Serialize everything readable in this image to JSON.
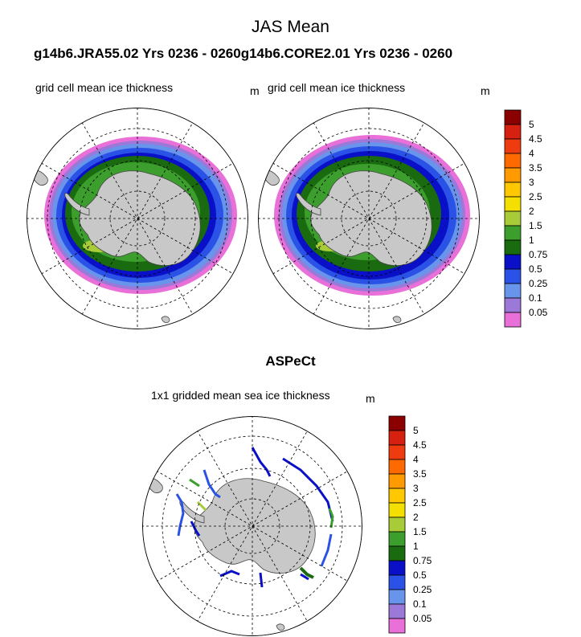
{
  "header": {
    "title": "JAS Mean",
    "subtitle": "g14b6.JRA55.02  Yrs 0236 - 0260g14b6.CORE2.01  Yrs 0236 - 0260"
  },
  "panels": [
    {
      "title": "grid cell mean ice thickness",
      "unit": "m"
    },
    {
      "title": "grid cell mean ice thickness",
      "unit": "m"
    }
  ],
  "observations": {
    "section_title": "ASPeCt",
    "title": "1x1 gridded mean sea ice thickness",
    "unit": "m"
  },
  "colorbar": {
    "levels": [
      "5",
      "4.5",
      "4",
      "3.5",
      "3",
      "2.5",
      "2",
      "1.5",
      "1",
      "0.75",
      "0.5",
      "0.25",
      "0.1",
      "0.05"
    ],
    "colors": [
      "#8b0000",
      "#d62010",
      "#ee3c10",
      "#ff6a00",
      "#ff9a00",
      "#ffc800",
      "#f3e000",
      "#a8cc38",
      "#3c9e2c",
      "#1a6a10",
      "#0a10c8",
      "#2a52e6",
      "#6894ec",
      "#9c78d8",
      "#e870d8"
    ]
  },
  "chart_data": {
    "type": "heatmap",
    "projection": "south polar stereographic",
    "variable": "sea ice thickness",
    "unit": "m",
    "contour_levels": [
      0.05,
      0.1,
      0.25,
      0.5,
      0.75,
      1,
      1.5,
      2,
      2.5,
      3,
      3.5,
      4,
      4.5,
      5
    ],
    "maps": [
      {
        "title": "grid cell mean ice thickness",
        "source": "g14b6.JRA55.02"
      },
      {
        "title": "grid cell mean ice thickness",
        "source": "g14b6.CORE2.01"
      },
      {
        "title": "1x1 gridded mean sea ice thickness",
        "source": "ASPeCt"
      }
    ]
  }
}
